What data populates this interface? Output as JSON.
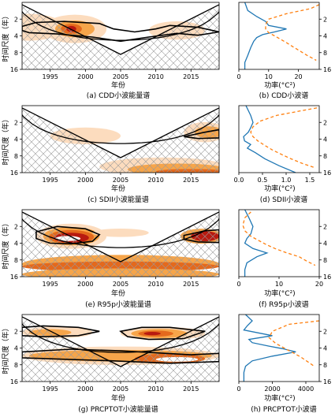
{
  "figure": {
    "rows": [
      {
        "left_caption": "(a) CDD小波能量谱",
        "right_caption": "(b) CDD小波谱",
        "right_xticks": [
          "0",
          "10",
          "20"
        ],
        "right_xmax": 27
      },
      {
        "left_caption": "(c) SDII小波能量谱",
        "right_caption": "(d) SDII小波谱",
        "right_xticks": [
          "0.0",
          "0.5",
          "1.0",
          "1.5"
        ],
        "right_xmax": 1.7
      },
      {
        "left_caption": "(e) R95p小波能量谱",
        "right_caption": "(f) R95p小波谱",
        "right_xticks": [
          "0",
          "10",
          "20"
        ],
        "right_xmax": 20
      },
      {
        "left_caption": "(g) PRCPTOT小波能量谱",
        "right_caption": "(h) PRCPTOT小波谱",
        "right_xticks": [
          "0",
          "2000",
          "4000"
        ],
        "right_xmax": 4800
      }
    ],
    "left_ylabel": "时间尺度（年）",
    "left_xlabel": "年份",
    "right_xlabel": "功率(°C²)",
    "left_xticks": [
      "1995",
      "2000",
      "2005",
      "2010",
      "2015"
    ],
    "left_yticks": [
      "2",
      "4",
      "8",
      "16"
    ]
  },
  "colors": {
    "blob_light": "#fcdcbe",
    "blob_mid": "#f6a54a",
    "blob_dark": "#e4691d",
    "blob_core": "#b81a10",
    "global_line": "#1f77b4",
    "significance_line": "#ff7f0e",
    "coi_line": "#000000"
  },
  "chart_data": [
    {
      "type": "heatmap",
      "title": "CDD小波能量谱",
      "xlabel": "年份",
      "ylabel": "时间尺度（年）",
      "xlim": [
        1991,
        2019
      ],
      "ylim": [
        16,
        1
      ],
      "xticks": [
        1995,
        2000,
        2005,
        2010,
        2015
      ],
      "yticks": [
        2,
        4,
        8,
        16
      ],
      "yscale": "log2",
      "regions": [
        {
          "x": 1992,
          "xr": 5,
          "y": 2.8,
          "yr": 0.8,
          "level": 1
        },
        {
          "x": 1998.5,
          "xr": 4.5,
          "y": 3.0,
          "yr": 0.85,
          "level": 1
        },
        {
          "x": 1998.5,
          "xr": 2.8,
          "y": 3.0,
          "yr": 0.5,
          "level": 2
        },
        {
          "x": 1998.0,
          "xr": 1.5,
          "y": 3.0,
          "yr": 0.3,
          "level": 3
        },
        {
          "x": 1998.0,
          "xr": 0.7,
          "y": 3.0,
          "yr": 0.18,
          "level": 4
        },
        {
          "x": 2013,
          "xr": 4,
          "y": 3.2,
          "yr": 0.55,
          "level": 1
        }
      ],
      "significance_contours": [
        [
          [
            1991,
            2.7
          ],
          [
            1993,
            2.3
          ],
          [
            1997,
            2.2
          ],
          [
            2002,
            2.4
          ],
          [
            2004,
            3.0
          ],
          [
            2007,
            3.4
          ],
          [
            2010,
            3.0
          ],
          [
            2012,
            2.6
          ],
          [
            2016,
            2.8
          ],
          [
            2019,
            3.4
          ],
          [
            2016,
            3.9
          ],
          [
            2013,
            3.6
          ],
          [
            2009,
            4.2
          ],
          [
            2005,
            5.0
          ],
          [
            2001,
            4.2
          ],
          [
            1996,
            3.7
          ],
          [
            1992,
            3.5
          ],
          [
            1991,
            3.2
          ]
        ]
      ]
    },
    {
      "type": "line",
      "title": "CDD小波谱",
      "xlabel": "功率(°C²)",
      "xlim": [
        0,
        27
      ],
      "ylim": [
        16,
        1
      ],
      "series": [
        {
          "x": [
            2,
            3,
            6,
            9,
            10,
            16,
            12,
            8,
            6,
            5,
            4,
            3,
            2,
            2
          ],
          "y": [
            1,
            1.4,
            1.8,
            2.2,
            2.6,
            3.0,
            3.4,
            3.8,
            4.3,
            5.0,
            6.5,
            9.0,
            12,
            16
          ]
        },
        {
          "x": [
            27,
            24,
            16,
            10,
            9,
            9,
            10,
            12,
            14,
            16,
            18,
            20,
            23,
            26
          ],
          "y": [
            1.1,
            1.3,
            1.6,
            2.0,
            2.5,
            3.0,
            3.5,
            4.0,
            4.6,
            5.3,
            6.2,
            7.2,
            9.0,
            11
          ]
        }
      ]
    },
    {
      "type": "heatmap",
      "title": "SDII小波能量谱",
      "xlabel": "年份",
      "ylabel": "时间尺度（年）",
      "xlim": [
        1991,
        2019
      ],
      "ylim": [
        16,
        1
      ],
      "xticks": [
        1995,
        2000,
        2005,
        2010,
        2015
      ],
      "yticks": [
        2,
        4,
        8,
        16
      ],
      "yscale": "log2",
      "regions": [
        {
          "x": 2000,
          "xr": 5,
          "y": 3.5,
          "yr": 0.5,
          "level": 1
        },
        {
          "x": 2017,
          "xr": 3,
          "y": 3.0,
          "yr": 0.6,
          "level": 1
        },
        {
          "x": 2017.5,
          "xr": 2,
          "y": 3.0,
          "yr": 0.35,
          "level": 2
        },
        {
          "x": 2011,
          "xr": 9,
          "y": 12.5,
          "yr": 0.55,
          "level": 1
        },
        {
          "x": 2013,
          "xr": 7,
          "y": 14,
          "yr": 0.35,
          "level": 2
        },
        {
          "x": 2015,
          "xr": 5,
          "y": 15.3,
          "yr": 0.15,
          "level": 3
        }
      ],
      "significance_contours": [
        [
          [
            2014,
            3.6
          ],
          [
            2017,
            3.0
          ],
          [
            2019,
            2.7
          ],
          [
            2019,
            3.8
          ],
          [
            2016,
            3.9
          ],
          [
            2014,
            3.6
          ]
        ]
      ]
    },
    {
      "type": "line",
      "title": "SDII小波谱",
      "xlabel": "功率(°C²)",
      "xlim": [
        0,
        1.7
      ],
      "ylim": [
        16,
        1
      ],
      "series": [
        {
          "x": [
            0.15,
            0.25,
            0.3,
            0.25,
            0.2,
            0.1,
            0.12,
            0.25,
            0.18,
            0.35,
            0.55,
            0.85,
            1.2
          ],
          "y": [
            1,
            1.5,
            2.0,
            2.5,
            3.0,
            3.6,
            4.3,
            5.0,
            5.8,
            7.0,
            9.0,
            12,
            16
          ]
        },
        {
          "x": [
            1.65,
            1.4,
            0.8,
            0.45,
            0.3,
            0.25,
            0.3,
            0.4,
            0.55,
            0.7,
            0.9,
            1.1,
            1.35,
            1.6
          ],
          "y": [
            1.1,
            1.2,
            1.5,
            1.9,
            2.4,
            3.0,
            3.6,
            4.3,
            5.2,
            6.2,
            7.5,
            9.0,
            11,
            13
          ]
        }
      ]
    },
    {
      "type": "heatmap",
      "title": "R95p小波能量谱",
      "xlabel": "年份",
      "ylabel": "时间尺度（年）",
      "xlim": [
        1991,
        2019
      ],
      "ylim": [
        16,
        1
      ],
      "xticks": [
        1995,
        2000,
        2005,
        2010,
        2015
      ],
      "yticks": [
        2,
        4,
        8,
        16
      ],
      "yscale": "log2",
      "regions": [
        {
          "x": 1998,
          "xr": 5,
          "y": 3.0,
          "yr": 0.75,
          "level": 1
        },
        {
          "x": 1998,
          "xr": 4,
          "y": 3.0,
          "yr": 0.55,
          "level": 2
        },
        {
          "x": 1998,
          "xr": 3.2,
          "y": 3.1,
          "yr": 0.42,
          "level": 3
        },
        {
          "x": 1998,
          "xr": 2.5,
          "y": 3.2,
          "yr": 0.3,
          "level": 4
        },
        {
          "x": 1997.5,
          "xr": 1.8,
          "y": 3.3,
          "yr": 0.15,
          "level": 5
        },
        {
          "x": 2005,
          "xr": 4,
          "y": 2.6,
          "yr": 0.25,
          "level": 1
        },
        {
          "x": 2016.5,
          "xr": 3,
          "y": 3.0,
          "yr": 0.45,
          "level": 2
        },
        {
          "x": 2017,
          "xr": 2,
          "y": 3.0,
          "yr": 0.3,
          "level": 4
        },
        {
          "x": 2005,
          "xr": 14,
          "y": 9.5,
          "yr": 0.55,
          "level": 2
        },
        {
          "x": 2005,
          "xr": 14,
          "y": 10.5,
          "yr": 0.3,
          "level": 3
        },
        {
          "x": 2005,
          "xr": 14,
          "y": 14.5,
          "yr": 0.35,
          "level": 2
        }
      ],
      "significance_contours": [
        [
          [
            1993,
            2.5
          ],
          [
            1996,
            2.0
          ],
          [
            2000,
            2.2
          ],
          [
            2002,
            2.8
          ],
          [
            2001,
            3.7
          ],
          [
            1998,
            4.1
          ],
          [
            1995,
            4.0
          ],
          [
            1993,
            3.3
          ]
        ],
        [
          [
            2014,
            2.9
          ],
          [
            2017,
            2.4
          ],
          [
            2019,
            2.3
          ],
          [
            2019,
            3.9
          ],
          [
            2016,
            3.8
          ],
          [
            2014,
            3.4
          ]
        ]
      ]
    },
    {
      "type": "line",
      "title": "R95p小波谱",
      "xlabel": "功率(°C²)",
      "xlim": [
        0,
        20
      ],
      "ylim": [
        16,
        1
      ],
      "series": [
        {
          "x": [
            1.5,
            2.5,
            3.5,
            3.0,
            2.0,
            1.5,
            3.5,
            7.0,
            4.5,
            2.0,
            1.5,
            1.5
          ],
          "y": [
            1,
            1.4,
            2.0,
            2.7,
            3.3,
            4.0,
            5.0,
            6.0,
            7.0,
            9.0,
            12,
            16
          ]
        },
        {
          "x": [
            3,
            1.5,
            1.0,
            1.5,
            3.0,
            5.0,
            7.0,
            9.0,
            12,
            15,
            17,
            19
          ],
          "y": [
            1.1,
            1.4,
            1.9,
            2.4,
            3.0,
            3.6,
            4.3,
            5.0,
            6.0,
            7.0,
            8.5,
            10
          ]
        }
      ]
    },
    {
      "type": "heatmap",
      "title": "PRCPTOT小波能量谱",
      "xlabel": "年份",
      "ylabel": "时间尺度（年）",
      "xlim": [
        1991,
        2019
      ],
      "ylim": [
        16,
        1
      ],
      "xticks": [
        1995,
        2000,
        2005,
        2010,
        2015
      ],
      "yticks": [
        2,
        4,
        8,
        16
      ],
      "yscale": "log2",
      "regions": [
        {
          "x": 1996,
          "xr": 5,
          "y": 2.1,
          "yr": 0.35,
          "level": 1
        },
        {
          "x": 1995,
          "xr": 3,
          "y": 2.1,
          "yr": 0.2,
          "level": 2
        },
        {
          "x": 2011,
          "xr": 6,
          "y": 2.2,
          "yr": 0.4,
          "level": 1
        },
        {
          "x": 2010.5,
          "xr": 4,
          "y": 2.2,
          "yr": 0.28,
          "level": 2
        },
        {
          "x": 2010,
          "xr": 2.5,
          "y": 2.2,
          "yr": 0.18,
          "level": 3
        },
        {
          "x": 2009.5,
          "xr": 1.2,
          "y": 2.2,
          "yr": 0.1,
          "level": 4
        },
        {
          "x": 2005,
          "xr": 14,
          "y": 5.5,
          "yr": 0.55,
          "level": 1
        },
        {
          "x": 2005,
          "xr": 13,
          "y": 5.5,
          "yr": 0.35,
          "level": 2
        },
        {
          "x": 2012,
          "xr": 5,
          "y": 6.2,
          "yr": 0.3,
          "level": 3
        },
        {
          "x": 2013,
          "xr": 3,
          "y": 6.4,
          "yr": 0.14,
          "level": 5
        }
      ],
      "significance_contours": [
        [
          [
            1991,
            1.7
          ],
          [
            1994,
            1.6
          ],
          [
            1999,
            1.7
          ],
          [
            2002,
            2.0
          ],
          [
            1999,
            2.4
          ],
          [
            1994,
            2.5
          ],
          [
            1991,
            2.4
          ]
        ],
        [
          [
            2005,
            2.0
          ],
          [
            2008,
            1.7
          ],
          [
            2012,
            1.7
          ],
          [
            2017,
            2.0
          ],
          [
            2014,
            2.7
          ],
          [
            2009,
            2.8
          ],
          [
            2006,
            2.5
          ]
        ],
        [
          [
            1991,
            4.7
          ],
          [
            1998,
            4.2
          ],
          [
            2005,
            4.5
          ],
          [
            2015,
            5.3
          ],
          [
            2019,
            5.0
          ],
          [
            2019,
            7.0
          ],
          [
            2012,
            7.5
          ],
          [
            2004,
            6.8
          ],
          [
            1996,
            6.3
          ],
          [
            1991,
            6.0
          ]
        ]
      ]
    },
    {
      "type": "line",
      "title": "PRCPTOT小波谱",
      "xlabel": "功率(°C²)",
      "xlim": [
        0,
        4800
      ],
      "ylim": [
        16,
        1
      ],
      "series": [
        {
          "x": [
            400,
            800,
            500,
            300,
            2000,
            600,
            800,
            1800,
            2600,
            3400,
            2000,
            800,
            400,
            300,
            300
          ],
          "y": [
            1,
            1.3,
            1.6,
            1.9,
            2.4,
            2.8,
            3.2,
            3.7,
            4.1,
            4.7,
            5.6,
            6.8,
            8.5,
            11,
            16
          ]
        },
        {
          "x": [
            4800,
            3000,
            2000,
            1800,
            2200,
            2700,
            3200,
            3700,
            4100,
            4500
          ],
          "y": [
            1.3,
            1.5,
            2.0,
            2.6,
            3.3,
            4.0,
            4.8,
            5.8,
            7.0,
            8.5
          ]
        }
      ]
    }
  ]
}
